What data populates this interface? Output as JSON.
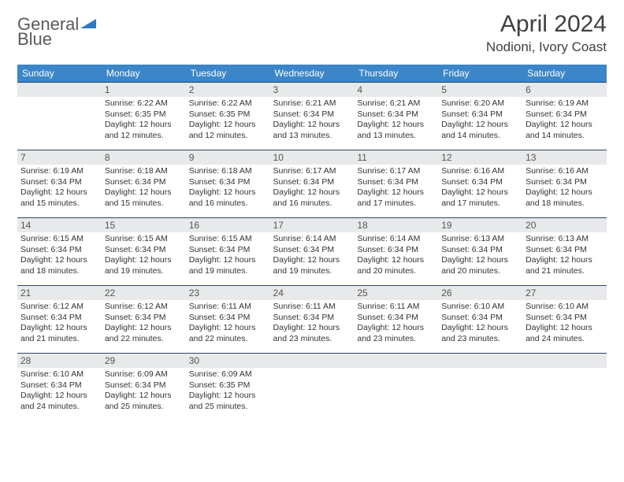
{
  "logo": {
    "word1": "General",
    "word2": "Blue"
  },
  "title": "April 2024",
  "location": "Nodioni, Ivory Coast",
  "colors": {
    "header_bg": "#3a86c8",
    "header_text": "#ffffff",
    "daynum_bg": "#e7e9ea",
    "cell_border": "#2b4a6a",
    "text": "#333333",
    "logo_gray": "#5a5a5a",
    "logo_blue": "#2f78c4"
  },
  "day_headers": [
    "Sunday",
    "Monday",
    "Tuesday",
    "Wednesday",
    "Thursday",
    "Friday",
    "Saturday"
  ],
  "weeks": [
    [
      null,
      {
        "n": "1",
        "sr": "6:22 AM",
        "ss": "6:35 PM",
        "d": "12 hours and 12 minutes."
      },
      {
        "n": "2",
        "sr": "6:22 AM",
        "ss": "6:35 PM",
        "d": "12 hours and 12 minutes."
      },
      {
        "n": "3",
        "sr": "6:21 AM",
        "ss": "6:34 PM",
        "d": "12 hours and 13 minutes."
      },
      {
        "n": "4",
        "sr": "6:21 AM",
        "ss": "6:34 PM",
        "d": "12 hours and 13 minutes."
      },
      {
        "n": "5",
        "sr": "6:20 AM",
        "ss": "6:34 PM",
        "d": "12 hours and 14 minutes."
      },
      {
        "n": "6",
        "sr": "6:19 AM",
        "ss": "6:34 PM",
        "d": "12 hours and 14 minutes."
      }
    ],
    [
      {
        "n": "7",
        "sr": "6:19 AM",
        "ss": "6:34 PM",
        "d": "12 hours and 15 minutes."
      },
      {
        "n": "8",
        "sr": "6:18 AM",
        "ss": "6:34 PM",
        "d": "12 hours and 15 minutes."
      },
      {
        "n": "9",
        "sr": "6:18 AM",
        "ss": "6:34 PM",
        "d": "12 hours and 16 minutes."
      },
      {
        "n": "10",
        "sr": "6:17 AM",
        "ss": "6:34 PM",
        "d": "12 hours and 16 minutes."
      },
      {
        "n": "11",
        "sr": "6:17 AM",
        "ss": "6:34 PM",
        "d": "12 hours and 17 minutes."
      },
      {
        "n": "12",
        "sr": "6:16 AM",
        "ss": "6:34 PM",
        "d": "12 hours and 17 minutes."
      },
      {
        "n": "13",
        "sr": "6:16 AM",
        "ss": "6:34 PM",
        "d": "12 hours and 18 minutes."
      }
    ],
    [
      {
        "n": "14",
        "sr": "6:15 AM",
        "ss": "6:34 PM",
        "d": "12 hours and 18 minutes."
      },
      {
        "n": "15",
        "sr": "6:15 AM",
        "ss": "6:34 PM",
        "d": "12 hours and 19 minutes."
      },
      {
        "n": "16",
        "sr": "6:15 AM",
        "ss": "6:34 PM",
        "d": "12 hours and 19 minutes."
      },
      {
        "n": "17",
        "sr": "6:14 AM",
        "ss": "6:34 PM",
        "d": "12 hours and 19 minutes."
      },
      {
        "n": "18",
        "sr": "6:14 AM",
        "ss": "6:34 PM",
        "d": "12 hours and 20 minutes."
      },
      {
        "n": "19",
        "sr": "6:13 AM",
        "ss": "6:34 PM",
        "d": "12 hours and 20 minutes."
      },
      {
        "n": "20",
        "sr": "6:13 AM",
        "ss": "6:34 PM",
        "d": "12 hours and 21 minutes."
      }
    ],
    [
      {
        "n": "21",
        "sr": "6:12 AM",
        "ss": "6:34 PM",
        "d": "12 hours and 21 minutes."
      },
      {
        "n": "22",
        "sr": "6:12 AM",
        "ss": "6:34 PM",
        "d": "12 hours and 22 minutes."
      },
      {
        "n": "23",
        "sr": "6:11 AM",
        "ss": "6:34 PM",
        "d": "12 hours and 22 minutes."
      },
      {
        "n": "24",
        "sr": "6:11 AM",
        "ss": "6:34 PM",
        "d": "12 hours and 23 minutes."
      },
      {
        "n": "25",
        "sr": "6:11 AM",
        "ss": "6:34 PM",
        "d": "12 hours and 23 minutes."
      },
      {
        "n": "26",
        "sr": "6:10 AM",
        "ss": "6:34 PM",
        "d": "12 hours and 23 minutes."
      },
      {
        "n": "27",
        "sr": "6:10 AM",
        "ss": "6:34 PM",
        "d": "12 hours and 24 minutes."
      }
    ],
    [
      {
        "n": "28",
        "sr": "6:10 AM",
        "ss": "6:34 PM",
        "d": "12 hours and 24 minutes."
      },
      {
        "n": "29",
        "sr": "6:09 AM",
        "ss": "6:34 PM",
        "d": "12 hours and 25 minutes."
      },
      {
        "n": "30",
        "sr": "6:09 AM",
        "ss": "6:35 PM",
        "d": "12 hours and 25 minutes."
      },
      null,
      null,
      null,
      null
    ]
  ],
  "labels": {
    "sunrise": "Sunrise:",
    "sunset": "Sunset:",
    "daylight": "Daylight:"
  }
}
